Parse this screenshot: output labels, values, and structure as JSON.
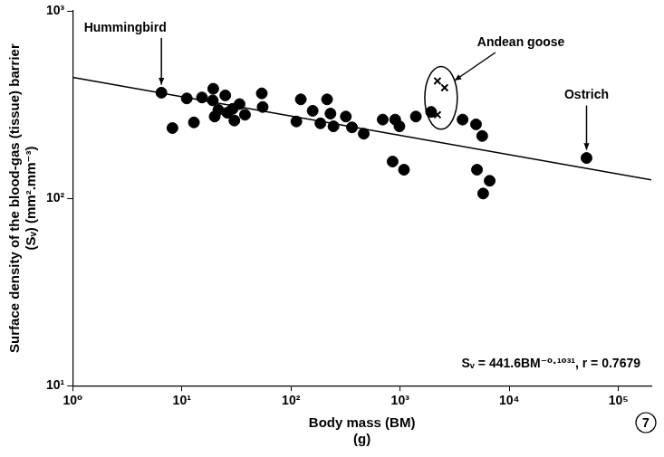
{
  "chart_data": {
    "type": "scatter",
    "x_label": [
      "Body mass (BM)",
      "(g)"
    ],
    "y_label": [
      "Surface density of the blood-gas (tissue) barrier",
      "(Sᵥ) (mm².mm⁻³)"
    ],
    "log": true,
    "grid": false,
    "xlim": [
      1,
      200000
    ],
    "ylim": [
      10,
      1000
    ],
    "xticks": [
      {
        "value": 1,
        "label": "10⁰"
      },
      {
        "value": 10,
        "label": "10¹"
      },
      {
        "value": 100,
        "label": "10²"
      },
      {
        "value": 1000,
        "label": "10³"
      },
      {
        "value": 10000,
        "label": "10⁴"
      },
      {
        "value": 100000,
        "label": "10⁵"
      }
    ],
    "yticks": [
      {
        "value": 10,
        "label": "10¹"
      },
      {
        "value": 100,
        "label": "10²"
      },
      {
        "value": 1000,
        "label": "10³"
      }
    ],
    "series": [
      {
        "type": "scatter",
        "color": "#000000",
        "marker": "circle",
        "x": [
          6.5,
          8.2,
          11.1,
          12.9,
          15.3,
          19.4,
          19.2,
          20,
          21.6,
          25,
          26.1,
          29.2,
          30.3,
          33.8,
          37.9,
          54,
          55,
          112,
          123,
          158,
          186,
          214,
          230,
          245,
          318,
          362,
          464,
          692,
          901,
          985,
          853,
          1084,
          1393,
          1923,
          3733,
          4956,
          5645,
          5058,
          5760,
          6610,
          51000
        ],
        "values": [
          366,
          237,
          341,
          254,
          345,
          384,
          333,
          273,
          296,
          354,
          286,
          300,
          260,
          318,
          279,
          363,
          307,
          257,
          337,
          293,
          251,
          337,
          283,
          242,
          273,
          239,
          221,
          263,
          263,
          242,
          157,
          142,
          273,
          289,
          263,
          248,
          215,
          142,
          106,
          124,
          164
        ]
      },
      {
        "type": "scatter",
        "color": "#000000",
        "marker": "cross",
        "x": [
          2197,
          2555,
          2197
        ],
        "values": [
          423,
          389,
          279
        ]
      },
      {
        "type": "line",
        "color": "#000000",
        "line_style": "solid",
        "x": [
          1,
          200000
        ],
        "values": [
          441.6,
          125.4
        ]
      }
    ],
    "annotations": [
      "Hummingbird",
      "Andean goose",
      "Ostrich",
      "Sᵥ = 441.6BM⁻⁰·¹⁰³¹, r = 0.7679",
      "7"
    ]
  }
}
